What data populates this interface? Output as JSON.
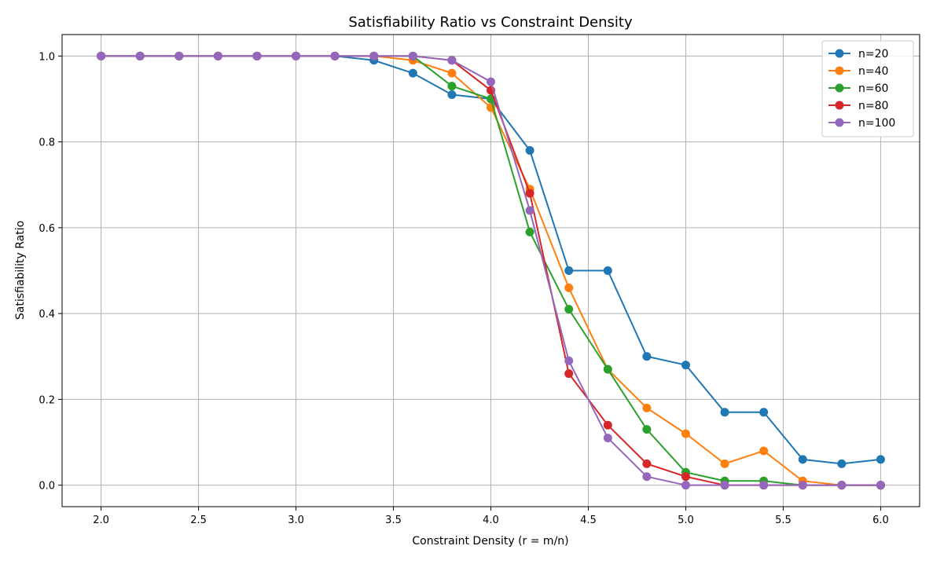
{
  "chart_data": {
    "type": "line",
    "title": "Satisfiability Ratio vs Constraint Density",
    "xlabel": "Constraint Density (r = m/n)",
    "ylabel": "Satisfiability Ratio",
    "xlim": [
      1.8,
      6.2
    ],
    "ylim": [
      -0.05,
      1.05
    ],
    "xticks": [
      "2.0",
      "2.5",
      "3.0",
      "3.5",
      "4.0",
      "4.5",
      "5.0",
      "5.5",
      "6.0"
    ],
    "yticks": [
      "0.0",
      "0.2",
      "0.4",
      "0.6",
      "0.8",
      "1.0"
    ],
    "grid": true,
    "legend_position": "top-right",
    "x": [
      2.0,
      2.2,
      2.4,
      2.6,
      2.8,
      3.0,
      3.2,
      3.4,
      3.6,
      3.8,
      4.0,
      4.2,
      4.4,
      4.6,
      4.8,
      5.0,
      5.2,
      5.4,
      5.6,
      5.8,
      6.0
    ],
    "series": [
      {
        "name": "n=20",
        "color": "#1f77b4",
        "values": [
          1,
          1,
          1,
          1,
          1,
          1,
          1,
          0.99,
          0.96,
          0.91,
          0.9,
          0.78,
          0.5,
          0.5,
          0.3,
          0.28,
          0.17,
          0.17,
          0.06,
          0.05,
          0.06
        ]
      },
      {
        "name": "n=40",
        "color": "#ff7f0e",
        "values": [
          1,
          1,
          1,
          1,
          1,
          1,
          1,
          1,
          0.99,
          0.96,
          0.88,
          0.69,
          0.46,
          0.27,
          0.18,
          0.12,
          0.05,
          0.08,
          0.01,
          0,
          0
        ]
      },
      {
        "name": "n=60",
        "color": "#2ca02c",
        "values": [
          1,
          1,
          1,
          1,
          1,
          1,
          1,
          1,
          1,
          0.93,
          0.9,
          0.59,
          0.41,
          0.27,
          0.13,
          0.03,
          0.01,
          0.01,
          0,
          0,
          0
        ]
      },
      {
        "name": "n=80",
        "color": "#d62728",
        "values": [
          1,
          1,
          1,
          1,
          1,
          1,
          1,
          1,
          1,
          0.99,
          0.92,
          0.68,
          0.26,
          0.14,
          0.05,
          0.02,
          0,
          0,
          0,
          0,
          0
        ]
      },
      {
        "name": "n=100",
        "color": "#9467bd",
        "values": [
          1,
          1,
          1,
          1,
          1,
          1,
          1,
          1,
          1,
          0.99,
          0.94,
          0.64,
          0.29,
          0.11,
          0.02,
          0,
          0,
          0,
          0,
          0,
          0
        ]
      }
    ]
  }
}
